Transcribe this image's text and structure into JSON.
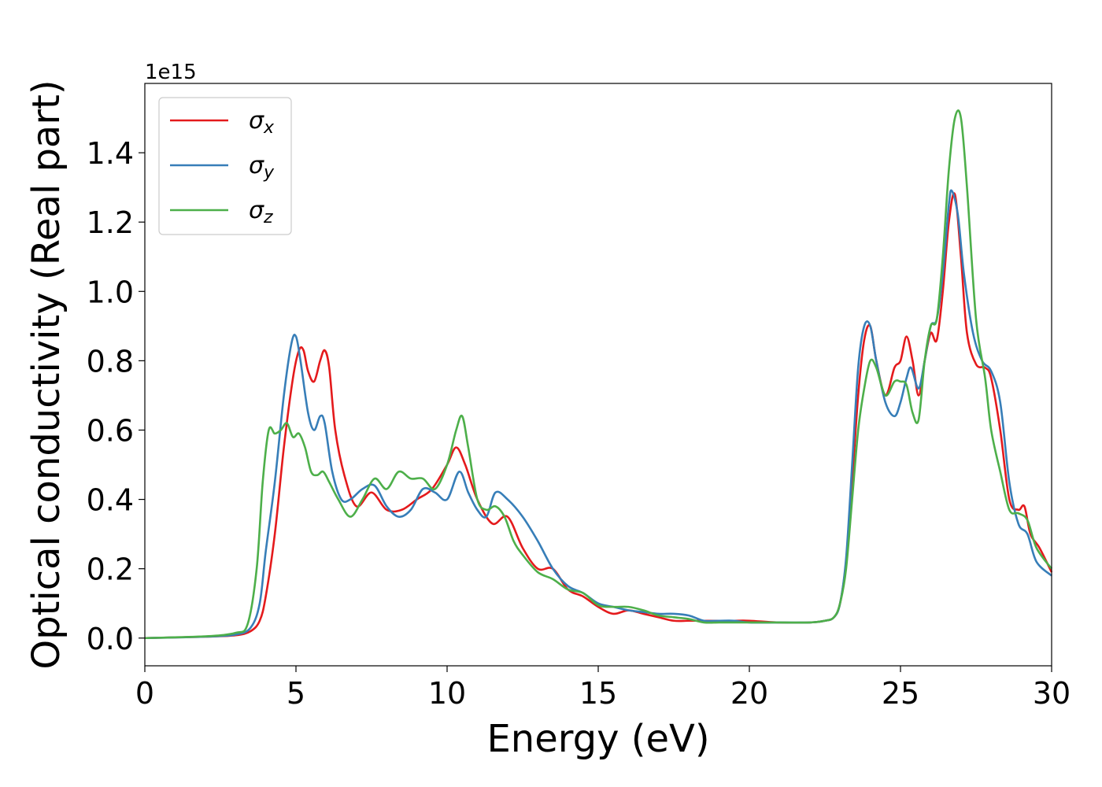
{
  "chart_data": {
    "type": "line",
    "title": "",
    "xlabel": "Energy (eV)",
    "ylabel": "Optical conductivity (Real part)",
    "y_offset_label": "1e15",
    "xlim": [
      0,
      30
    ],
    "ylim": [
      -0.08,
      1.6
    ],
    "xticks": [
      0,
      5,
      10,
      15,
      20,
      25,
      30
    ],
    "yticks": [
      0.0,
      0.2,
      0.4,
      0.6,
      0.8,
      1.0,
      1.2,
      1.4
    ],
    "xtick_labels": [
      "0",
      "5",
      "10",
      "15",
      "20",
      "25",
      "30"
    ],
    "ytick_labels": [
      "0.0",
      "0.2",
      "0.4",
      "0.6",
      "0.8",
      "1.0",
      "1.2",
      "1.4"
    ],
    "grid": false,
    "legend_position": "top-left",
    "series": [
      {
        "name": "σx",
        "symbol": "σ",
        "subscript": "x",
        "color": "#e41a1c",
        "x": [
          0,
          2,
          3,
          3.5,
          3.8,
          4.0,
          4.3,
          4.6,
          4.9,
          5.1,
          5.25,
          5.4,
          5.6,
          5.8,
          5.95,
          6.1,
          6.3,
          6.6,
          7.0,
          7.5,
          8.0,
          8.5,
          9.0,
          9.5,
          10.0,
          10.3,
          10.6,
          11.0,
          11.5,
          12.0,
          12.5,
          13.0,
          13.5,
          14.0,
          14.5,
          15.0,
          15.5,
          16.0,
          16.5,
          17.0,
          17.5,
          18.0,
          18.5,
          19.0,
          19.5,
          20.0,
          21.0,
          22.0,
          22.5,
          22.8,
          23.0,
          23.2,
          23.4,
          23.6,
          23.8,
          24.0,
          24.2,
          24.5,
          24.8,
          25.0,
          25.2,
          25.4,
          25.6,
          25.8,
          26.0,
          26.2,
          26.4,
          26.6,
          26.8,
          27.0,
          27.2,
          27.5,
          27.8,
          28.0,
          28.3,
          28.6,
          28.9,
          29.1,
          29.3,
          29.6,
          30.0
        ],
        "values": [
          0.0,
          0.004,
          0.008,
          0.02,
          0.05,
          0.12,
          0.3,
          0.55,
          0.75,
          0.83,
          0.83,
          0.77,
          0.74,
          0.8,
          0.83,
          0.78,
          0.6,
          0.47,
          0.38,
          0.42,
          0.37,
          0.37,
          0.4,
          0.43,
          0.5,
          0.55,
          0.5,
          0.4,
          0.33,
          0.35,
          0.26,
          0.2,
          0.2,
          0.14,
          0.12,
          0.09,
          0.07,
          0.08,
          0.07,
          0.06,
          0.05,
          0.05,
          0.05,
          0.05,
          0.05,
          0.05,
          0.045,
          0.045,
          0.05,
          0.06,
          0.1,
          0.22,
          0.45,
          0.7,
          0.86,
          0.9,
          0.8,
          0.7,
          0.78,
          0.8,
          0.87,
          0.8,
          0.7,
          0.8,
          0.88,
          0.86,
          1.0,
          1.2,
          1.28,
          1.1,
          0.88,
          0.79,
          0.78,
          0.75,
          0.6,
          0.4,
          0.37,
          0.38,
          0.3,
          0.26,
          0.19
        ]
      },
      {
        "name": "σy",
        "symbol": "σ",
        "subscript": "y",
        "color": "#377eb8",
        "x": [
          0,
          2,
          3,
          3.5,
          3.8,
          4.0,
          4.3,
          4.6,
          4.85,
          5.0,
          5.15,
          5.4,
          5.6,
          5.8,
          5.95,
          6.2,
          6.5,
          6.8,
          7.2,
          7.6,
          8.0,
          8.4,
          8.8,
          9.2,
          9.6,
          10.0,
          10.4,
          10.7,
          11.0,
          11.3,
          11.6,
          12.0,
          12.5,
          13.0,
          13.5,
          14.0,
          14.5,
          15.0,
          15.5,
          16.0,
          16.5,
          17.0,
          17.5,
          18.0,
          18.5,
          19.0,
          19.5,
          20.0,
          21.0,
          22.0,
          22.5,
          22.8,
          23.0,
          23.2,
          23.4,
          23.6,
          23.8,
          24.0,
          24.2,
          24.5,
          24.8,
          25.0,
          25.2,
          25.35,
          25.6,
          25.8,
          26.0,
          26.2,
          26.4,
          26.6,
          26.7,
          26.9,
          27.1,
          27.4,
          27.7,
          28.0,
          28.3,
          28.6,
          28.9,
          29.2,
          29.5,
          30.0
        ],
        "values": [
          0.0,
          0.004,
          0.01,
          0.03,
          0.1,
          0.25,
          0.45,
          0.7,
          0.85,
          0.87,
          0.8,
          0.65,
          0.6,
          0.64,
          0.62,
          0.48,
          0.4,
          0.4,
          0.43,
          0.44,
          0.38,
          0.35,
          0.37,
          0.43,
          0.42,
          0.4,
          0.48,
          0.42,
          0.37,
          0.35,
          0.42,
          0.4,
          0.35,
          0.28,
          0.2,
          0.15,
          0.13,
          0.1,
          0.09,
          0.08,
          0.075,
          0.07,
          0.07,
          0.065,
          0.05,
          0.05,
          0.05,
          0.045,
          0.045,
          0.045,
          0.05,
          0.06,
          0.1,
          0.23,
          0.5,
          0.78,
          0.9,
          0.9,
          0.8,
          0.68,
          0.64,
          0.68,
          0.75,
          0.78,
          0.72,
          0.8,
          0.9,
          0.92,
          1.05,
          1.25,
          1.29,
          1.22,
          1.05,
          0.88,
          0.8,
          0.77,
          0.68,
          0.45,
          0.33,
          0.3,
          0.22,
          0.18
        ]
      },
      {
        "name": "σz",
        "symbol": "σ",
        "subscript": "z",
        "color": "#4daf4a",
        "x": [
          0,
          2,
          3,
          3.4,
          3.7,
          3.9,
          4.1,
          4.3,
          4.5,
          4.7,
          4.9,
          5.1,
          5.3,
          5.5,
          5.7,
          5.9,
          6.1,
          6.4,
          6.8,
          7.2,
          7.6,
          8.0,
          8.4,
          8.8,
          9.2,
          9.6,
          10.0,
          10.3,
          10.5,
          10.7,
          11.0,
          11.3,
          11.6,
          11.9,
          12.2,
          12.5,
          13.0,
          13.5,
          14.0,
          14.5,
          15.0,
          15.5,
          16.0,
          16.5,
          17.0,
          17.5,
          18.0,
          18.5,
          19.0,
          19.5,
          20.0,
          21.0,
          22.0,
          22.5,
          22.8,
          23.0,
          23.2,
          23.4,
          23.6,
          23.8,
          24.0,
          24.2,
          24.5,
          24.8,
          25.0,
          25.2,
          25.4,
          25.6,
          25.8,
          26.0,
          26.2,
          26.4,
          26.6,
          26.8,
          27.0,
          27.2,
          27.5,
          27.8,
          28.0,
          28.3,
          28.6,
          28.9,
          29.2,
          29.5,
          30.0
        ],
        "values": [
          0.0,
          0.005,
          0.015,
          0.04,
          0.2,
          0.45,
          0.6,
          0.59,
          0.6,
          0.62,
          0.58,
          0.59,
          0.55,
          0.48,
          0.47,
          0.48,
          0.45,
          0.4,
          0.35,
          0.4,
          0.46,
          0.43,
          0.48,
          0.46,
          0.46,
          0.43,
          0.5,
          0.6,
          0.64,
          0.55,
          0.4,
          0.37,
          0.38,
          0.35,
          0.28,
          0.24,
          0.19,
          0.17,
          0.14,
          0.13,
          0.095,
          0.09,
          0.09,
          0.08,
          0.065,
          0.06,
          0.055,
          0.045,
          0.045,
          0.045,
          0.045,
          0.045,
          0.045,
          0.05,
          0.06,
          0.1,
          0.2,
          0.4,
          0.6,
          0.72,
          0.8,
          0.78,
          0.7,
          0.74,
          0.74,
          0.73,
          0.65,
          0.63,
          0.8,
          0.9,
          0.92,
          1.1,
          1.35,
          1.5,
          1.5,
          1.3,
          0.92,
          0.75,
          0.6,
          0.48,
          0.37,
          0.36,
          0.34,
          0.26,
          0.2
        ]
      }
    ]
  }
}
